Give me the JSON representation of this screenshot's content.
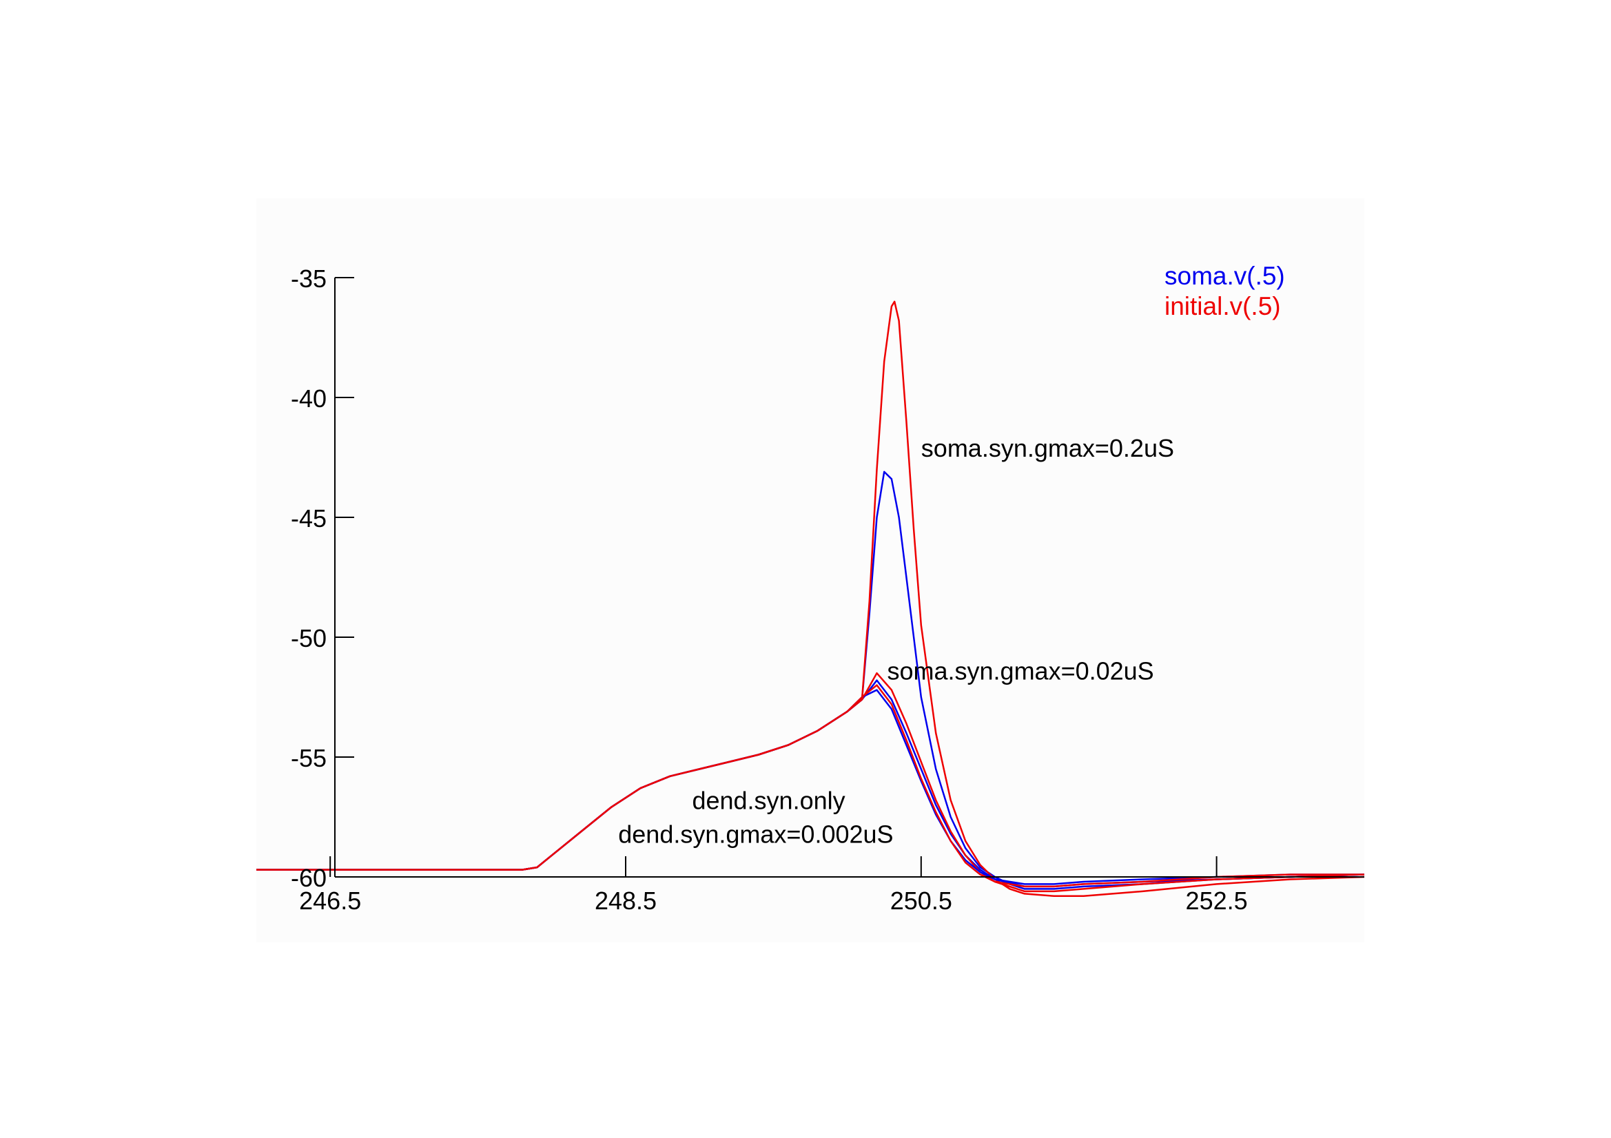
{
  "colors": {
    "soma": "#0000ee",
    "initial": "#ee0000",
    "axis": "#000000"
  },
  "chart_data": {
    "type": "line",
    "title": "",
    "xlabel": "",
    "ylabel": "",
    "xlim": [
      246.0,
      253.5
    ],
    "ylim": [
      -60,
      -35
    ],
    "x_ticks": [
      246.5,
      248.5,
      250.5,
      252.5
    ],
    "x_tick_labels": [
      "246.5",
      "248.5",
      "250.5",
      "252.5"
    ],
    "y_ticks": [
      -35,
      -40,
      -45,
      -50,
      -55,
      -60
    ],
    "y_tick_labels": [
      "-35",
      "-40",
      "-45",
      "-50",
      "-55",
      "-60"
    ],
    "grid": false,
    "legend": {
      "placement": "top-right",
      "entries": [
        {
          "label": "soma.v(.5)",
          "color_key": "soma"
        },
        {
          "label": "initial.v(.5)",
          "color_key": "initial"
        }
      ]
    },
    "annotations": [
      {
        "text": "soma.syn.gmax=0.2uS",
        "x": 250.5,
        "y": -42.1
      },
      {
        "text": "soma.syn.gmax=0.02uS",
        "x": 250.27,
        "y": -51.4
      },
      {
        "text": "dend.syn.only",
        "x": 248.95,
        "y": -56.8
      },
      {
        "text": "dend.syn.gmax=0.002uS",
        "x": 248.45,
        "y": -58.2
      }
    ],
    "series": [
      {
        "legend": "soma.v(.5)",
        "color_key": "soma",
        "condition": "soma.syn.gmax=0.2uS",
        "x": [
          246.0,
          247.8,
          247.9,
          248.0,
          248.2,
          248.4,
          248.6,
          248.8,
          249.0,
          249.2,
          249.4,
          249.6,
          249.8,
          250.0,
          250.1,
          250.15,
          250.2,
          250.25,
          250.3,
          250.35,
          250.4,
          250.45,
          250.5,
          250.6,
          250.7,
          250.8,
          250.9,
          251.0,
          251.1,
          251.2,
          251.4,
          251.6,
          252.0,
          252.5,
          253.0,
          253.5
        ],
        "y": [
          -59.7,
          -59.7,
          -59.6,
          -59.1,
          -58.1,
          -57.1,
          -56.3,
          -55.8,
          -55.5,
          -55.2,
          -54.9,
          -54.5,
          -53.9,
          -53.1,
          -52.6,
          -49.0,
          -45.0,
          -43.1,
          -43.4,
          -45.0,
          -47.5,
          -50.0,
          -52.5,
          -55.5,
          -57.5,
          -58.8,
          -59.6,
          -60.0,
          -60.3,
          -60.5,
          -60.5,
          -60.4,
          -60.3,
          -60.1,
          -60.0,
          -59.9
        ]
      },
      {
        "legend": "initial.v(.5)",
        "color_key": "initial",
        "condition": "soma.syn.gmax=0.2uS",
        "x": [
          246.0,
          247.8,
          247.9,
          248.0,
          248.2,
          248.4,
          248.6,
          248.8,
          249.0,
          249.2,
          249.4,
          249.6,
          249.8,
          250.0,
          250.1,
          250.15,
          250.2,
          250.25,
          250.3,
          250.32,
          250.35,
          250.4,
          250.45,
          250.5,
          250.6,
          250.7,
          250.8,
          250.9,
          251.0,
          251.1,
          251.2,
          251.4,
          251.6,
          252.0,
          252.5,
          253.0,
          253.5
        ],
        "y": [
          -59.7,
          -59.7,
          -59.6,
          -59.1,
          -58.1,
          -57.1,
          -56.3,
          -55.8,
          -55.5,
          -55.2,
          -54.9,
          -54.5,
          -53.9,
          -53.1,
          -52.6,
          -48.5,
          -43.0,
          -38.5,
          -36.2,
          -36.0,
          -36.8,
          -41.0,
          -45.5,
          -49.5,
          -54.0,
          -56.8,
          -58.5,
          -59.5,
          -60.1,
          -60.5,
          -60.7,
          -60.8,
          -60.8,
          -60.6,
          -60.3,
          -60.1,
          -60.0
        ]
      },
      {
        "legend": "soma.v(.5)",
        "color_key": "soma",
        "condition": "soma.syn.gmax=0.02uS",
        "x": [
          246.0,
          247.8,
          247.9,
          248.0,
          248.2,
          248.4,
          248.6,
          248.8,
          249.0,
          249.2,
          249.4,
          249.6,
          249.8,
          250.0,
          250.1,
          250.2,
          250.3,
          250.4,
          250.5,
          250.6,
          250.7,
          250.8,
          250.9,
          251.0,
          251.2,
          251.4,
          251.6,
          252.0,
          252.5,
          253.0,
          253.5
        ],
        "y": [
          -59.7,
          -59.7,
          -59.6,
          -59.1,
          -58.1,
          -57.1,
          -56.3,
          -55.8,
          -55.5,
          -55.2,
          -54.9,
          -54.5,
          -53.9,
          -53.1,
          -52.6,
          -51.8,
          -52.6,
          -54.0,
          -55.5,
          -57.0,
          -58.2,
          -59.1,
          -59.7,
          -60.1,
          -60.4,
          -60.4,
          -60.3,
          -60.2,
          -60.1,
          -60.0,
          -59.9
        ]
      },
      {
        "legend": "initial.v(.5)",
        "color_key": "initial",
        "condition": "soma.syn.gmax=0.02uS",
        "x": [
          246.0,
          247.8,
          247.9,
          248.0,
          248.2,
          248.4,
          248.6,
          248.8,
          249.0,
          249.2,
          249.4,
          249.6,
          249.8,
          250.0,
          250.1,
          250.2,
          250.3,
          250.4,
          250.5,
          250.6,
          250.7,
          250.8,
          250.9,
          251.0,
          251.2,
          251.4,
          251.6,
          252.0,
          252.5,
          253.0,
          253.5
        ],
        "y": [
          -59.7,
          -59.7,
          -59.6,
          -59.1,
          -58.1,
          -57.1,
          -56.3,
          -55.8,
          -55.5,
          -55.2,
          -54.9,
          -54.5,
          -53.9,
          -53.1,
          -52.6,
          -51.5,
          -52.2,
          -53.6,
          -55.2,
          -56.8,
          -58.1,
          -59.1,
          -59.8,
          -60.2,
          -60.6,
          -60.6,
          -60.5,
          -60.3,
          -60.1,
          -60.0,
          -59.9
        ]
      },
      {
        "legend": "soma.v(.5)",
        "color_key": "soma",
        "condition": "dend.syn.only",
        "x": [
          246.0,
          247.8,
          247.9,
          248.0,
          248.2,
          248.4,
          248.6,
          248.8,
          249.0,
          249.2,
          249.4,
          249.6,
          249.8,
          250.0,
          250.1,
          250.2,
          250.3,
          250.4,
          250.5,
          250.6,
          250.7,
          250.8,
          250.9,
          251.0,
          251.2,
          251.4,
          251.6,
          252.0,
          252.5,
          253.0,
          253.5
        ],
        "y": [
          -59.7,
          -59.7,
          -59.6,
          -59.1,
          -58.1,
          -57.1,
          -56.3,
          -55.8,
          -55.5,
          -55.2,
          -54.9,
          -54.5,
          -53.9,
          -53.1,
          -52.5,
          -52.2,
          -53.0,
          -54.5,
          -56.0,
          -57.4,
          -58.5,
          -59.3,
          -59.8,
          -60.1,
          -60.3,
          -60.3,
          -60.2,
          -60.1,
          -60.0,
          -59.9,
          -59.9
        ]
      },
      {
        "legend": "initial.v(.5)",
        "color_key": "initial",
        "condition": "dend.syn.only",
        "x": [
          246.0,
          247.8,
          247.9,
          248.0,
          248.2,
          248.4,
          248.6,
          248.8,
          249.0,
          249.2,
          249.4,
          249.6,
          249.8,
          250.0,
          250.1,
          250.2,
          250.3,
          250.4,
          250.5,
          250.6,
          250.7,
          250.8,
          250.9,
          251.0,
          251.2,
          251.4,
          251.6,
          252.0,
          252.5,
          253.0,
          253.5
        ],
        "y": [
          -59.7,
          -59.7,
          -59.6,
          -59.1,
          -58.1,
          -57.1,
          -56.3,
          -55.8,
          -55.5,
          -55.2,
          -54.9,
          -54.5,
          -53.9,
          -53.1,
          -52.5,
          -52.0,
          -52.8,
          -54.3,
          -55.9,
          -57.3,
          -58.5,
          -59.4,
          -59.9,
          -60.2,
          -60.4,
          -60.4,
          -60.3,
          -60.2,
          -60.0,
          -59.9,
          -59.9
        ]
      }
    ]
  }
}
